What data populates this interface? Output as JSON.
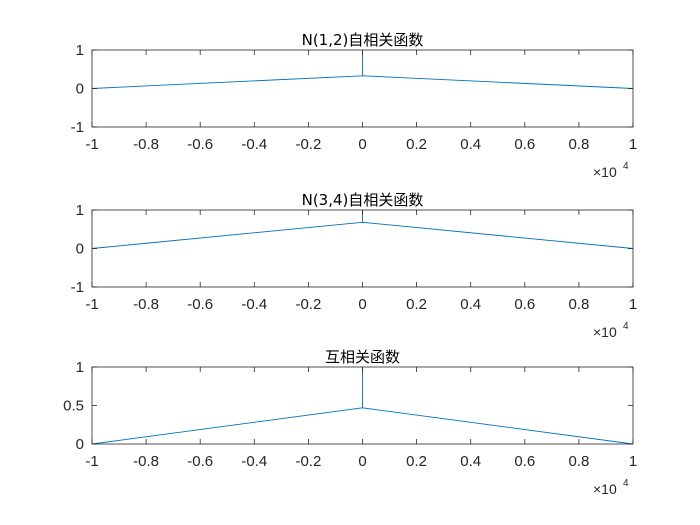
{
  "figure": {
    "background": "#ffffff",
    "line_color": "#0072bd",
    "axis_color": "#262626"
  },
  "chart_data": [
    {
      "type": "line",
      "title": "N(1,2)自相关函数",
      "xlabel": "",
      "ylabel": "",
      "xlim": [
        -10000,
        10000
      ],
      "ylim": [
        -1,
        1
      ],
      "x_ticks": [
        "-1",
        "-0.8",
        "-0.6",
        "-0.4",
        "-0.2",
        "0",
        "0.2",
        "0.4",
        "0.6",
        "0.8",
        "1"
      ],
      "y_ticks": [
        "-1",
        "0",
        "1"
      ],
      "x_exponent": {
        "base": "×10",
        "power": "4"
      },
      "series": [
        {
          "x": [
            -10000,
            -1,
            0,
            0,
            1,
            10000
          ],
          "y": [
            0.0,
            0.33,
            0.33,
            1.0,
            0.33,
            0.0
          ]
        }
      ]
    },
    {
      "type": "line",
      "title": "N(3,4)自相关函数",
      "xlabel": "",
      "ylabel": "",
      "xlim": [
        -10000,
        10000
      ],
      "ylim": [
        -1,
        1
      ],
      "x_ticks": [
        "-1",
        "-0.8",
        "-0.6",
        "-0.4",
        "-0.2",
        "0",
        "0.2",
        "0.4",
        "0.6",
        "0.8",
        "1"
      ],
      "y_ticks": [
        "-1",
        "0",
        "1"
      ],
      "x_exponent": {
        "base": "×10",
        "power": "4"
      },
      "series": [
        {
          "x": [
            -10000,
            -1,
            0,
            0,
            1,
            10000
          ],
          "y": [
            0.0,
            0.68,
            0.68,
            1.0,
            0.68,
            0.0
          ]
        }
      ]
    },
    {
      "type": "line",
      "title": "互相关函数",
      "xlabel": "",
      "ylabel": "",
      "xlim": [
        -10000,
        10000
      ],
      "ylim": [
        0,
        1
      ],
      "x_ticks": [
        "-1",
        "-0.8",
        "-0.6",
        "-0.4",
        "-0.2",
        "0",
        "0.2",
        "0.4",
        "0.6",
        "0.8",
        "1"
      ],
      "y_ticks": [
        "0",
        "0.5",
        "1"
      ],
      "x_exponent": {
        "base": "×10",
        "power": "4"
      },
      "series": [
        {
          "x": [
            -10000,
            -1,
            0,
            0,
            1,
            10000
          ],
          "y": [
            0.0,
            0.47,
            0.47,
            1.0,
            0.47,
            0.0
          ]
        }
      ]
    }
  ]
}
